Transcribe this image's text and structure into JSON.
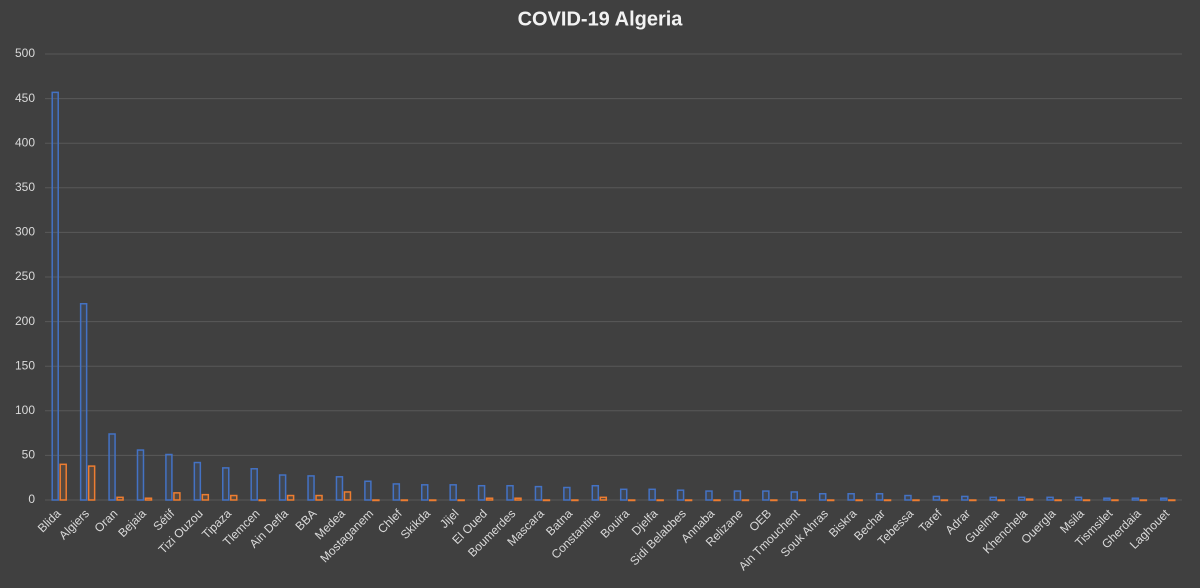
{
  "chart_data": {
    "type": "bar",
    "title": "COVID-19 Algeria",
    "categories": [
      "Blida",
      "Algiers",
      "Oran",
      "Bejaia",
      "Sétif",
      "Tizi Ouzou",
      "Tipaza",
      "Tlemcen",
      "Ain Defla",
      "BBA",
      "Medea",
      "Mostaganem",
      "Chlef",
      "Skikda",
      "Jijel",
      "El Oued",
      "Boumerdes",
      "Mascara",
      "Batna",
      "Constantine",
      "Bouira",
      "Djelfa",
      "Sidi Belabbes",
      "Annaba",
      "Relizane",
      "OEB",
      "Ain Tmouchent",
      "Souk Ahras",
      "Biskra",
      "Bechar",
      "Tebessa",
      "Taref",
      "Adrar",
      "Guelma",
      "Khenchela",
      "Ouergla",
      "Msila",
      "Tismsilet",
      "Gherdaia",
      "Laghouet"
    ],
    "series": [
      {
        "color": "#4472c4",
        "values": [
          457,
          220,
          74,
          56,
          51,
          42,
          36,
          35,
          28,
          27,
          26,
          21,
          18,
          17,
          17,
          16,
          16,
          15,
          14,
          16,
          12,
          12,
          11,
          10,
          10,
          10,
          9,
          7,
          7,
          7,
          5,
          4,
          4,
          3,
          3,
          3,
          3,
          2,
          2,
          2
        ]
      },
      {
        "color": "#ed7d31",
        "values": [
          40,
          38,
          3,
          2,
          8,
          6,
          5,
          0,
          5,
          5,
          9,
          0,
          0,
          0,
          0,
          2,
          2,
          0,
          0,
          3,
          0,
          0,
          0,
          0,
          0,
          0,
          0,
          0,
          0,
          0,
          0,
          0,
          0,
          0,
          1,
          0,
          0,
          0,
          0,
          0
        ]
      }
    ],
    "ylim": [
      0,
      500
    ],
    "yticks": [
      0,
      50,
      100,
      150,
      200,
      250,
      300,
      350,
      400,
      450,
      500
    ],
    "grid": true
  }
}
